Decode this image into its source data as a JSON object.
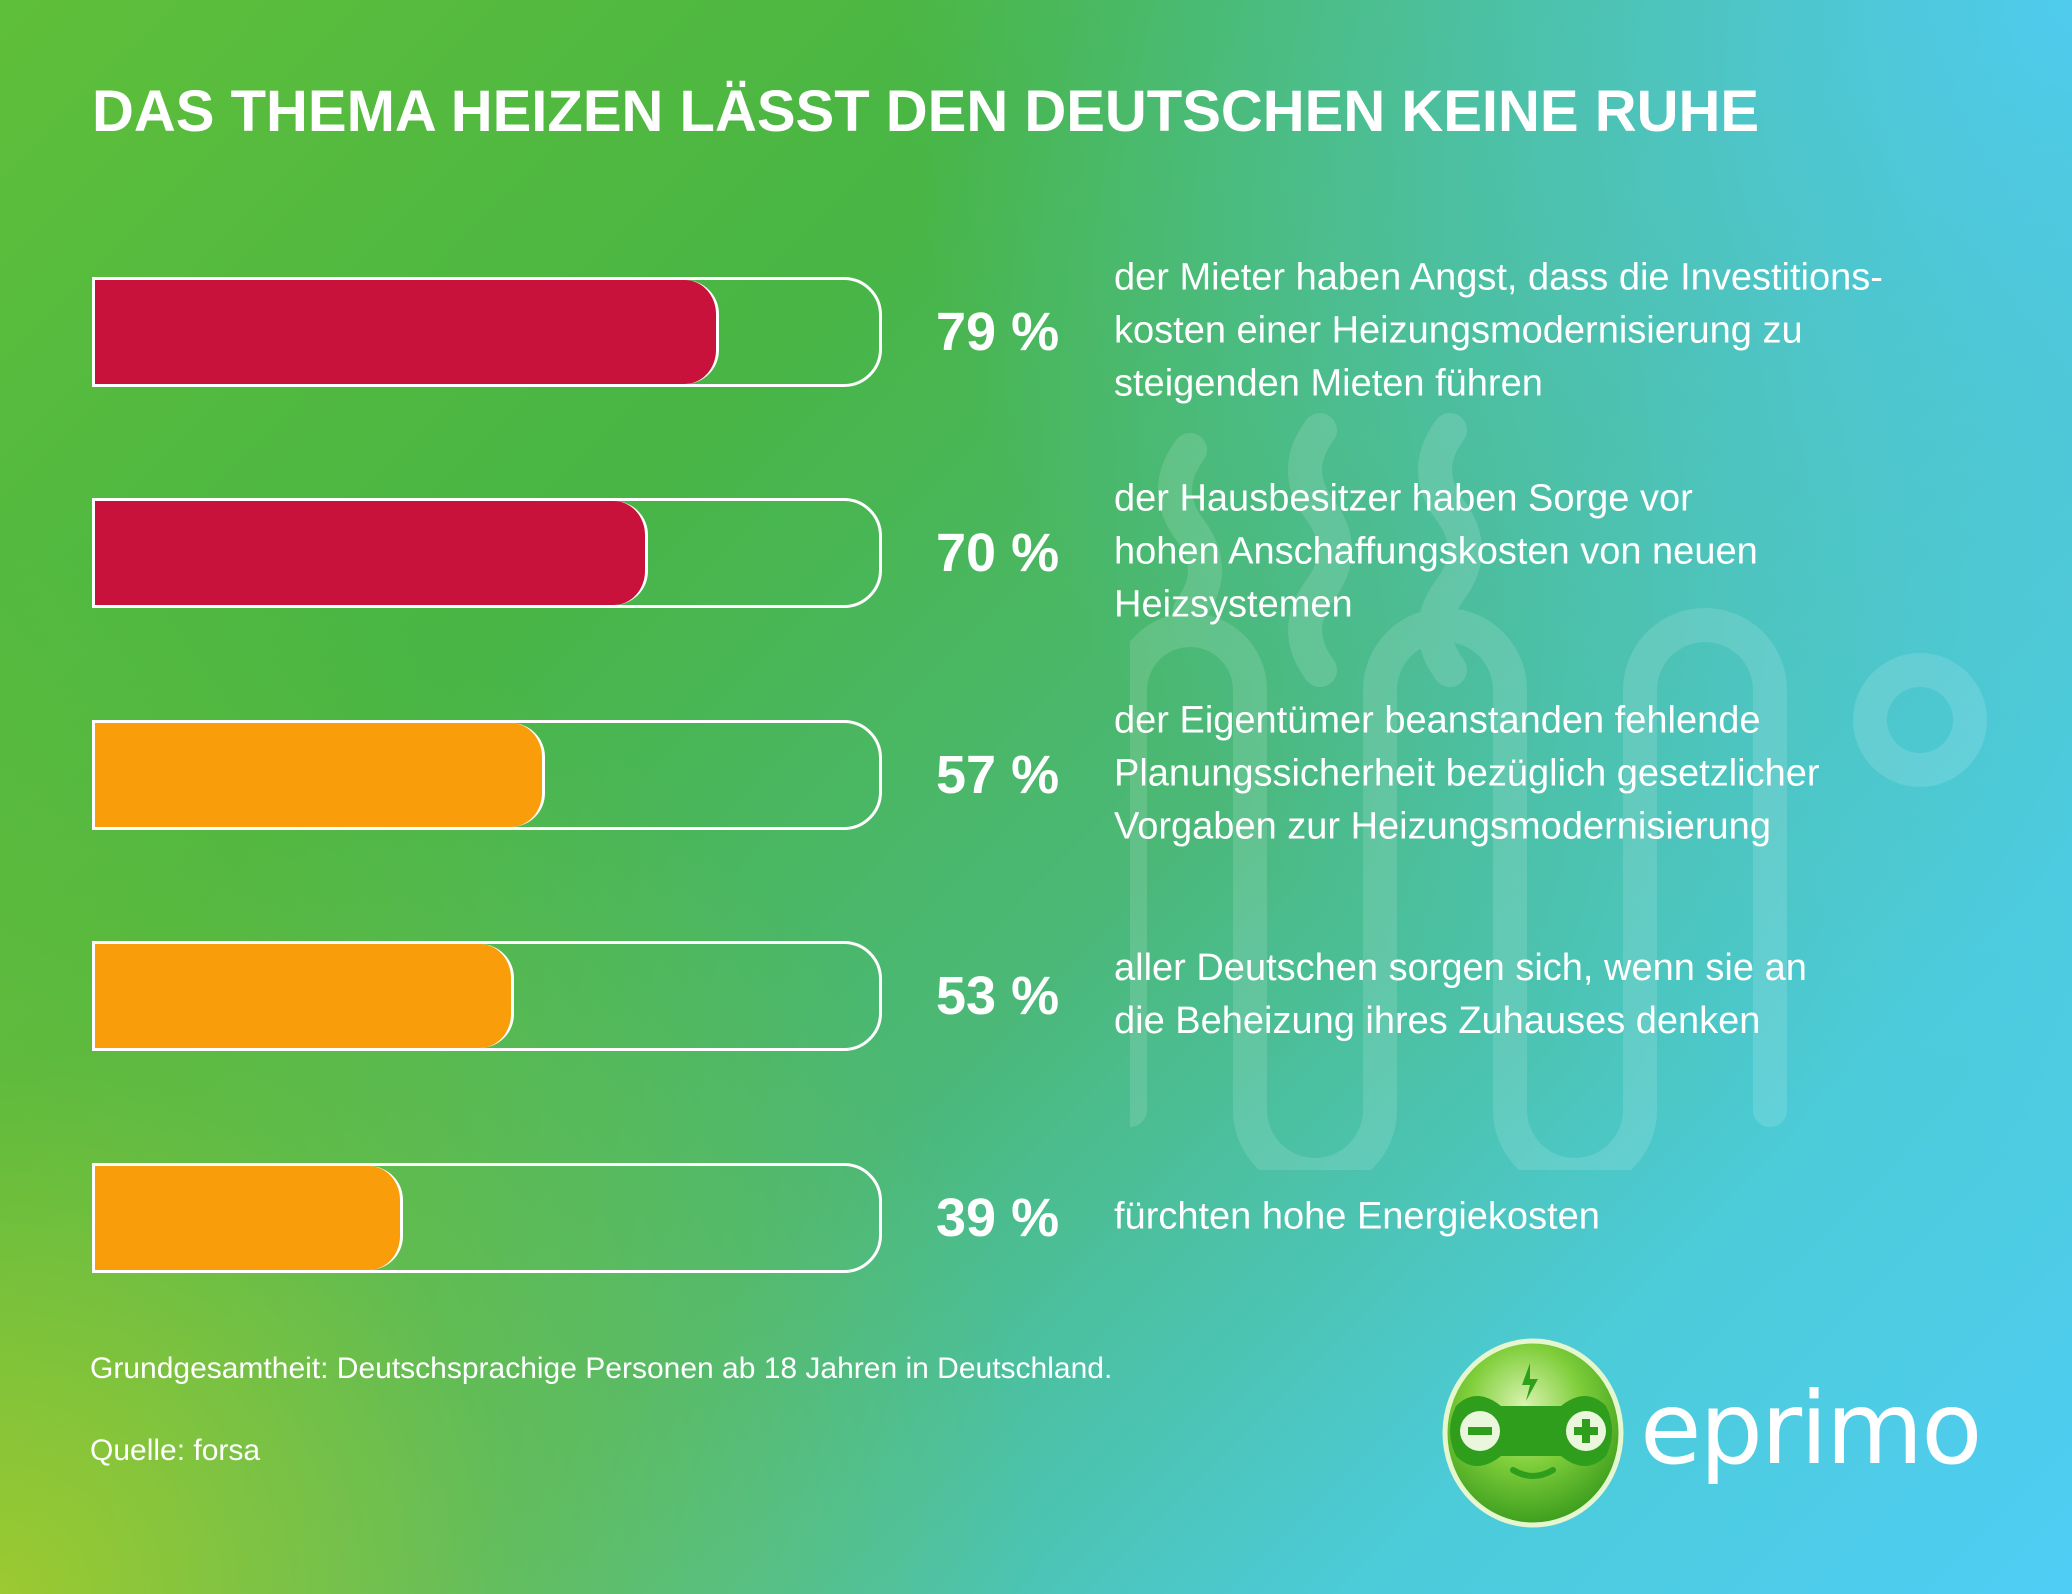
{
  "title": "DAS THEMA HEIZEN LÄSST DEN DEUTSCHEN KEINE RUHE",
  "colors": {
    "red": "#c8123c",
    "orange": "#f99d0a",
    "track_border": "#ffffff"
  },
  "chart_data": {
    "type": "bar",
    "orientation": "horizontal",
    "xlim": [
      0,
      100
    ],
    "categories": [
      "der Mieter haben Angst, dass die Investitions-\nkosten einer Heizungsmodernisierung zu\nsteigenden Mieten führen",
      "der Hausbesitzer haben Sorge vor\nhohen Anschaffungskosten von neuen\nHeizsystemen",
      "der Eigentümer beanstanden fehlende\nPlanungssicherheit bezüglich gesetzlicher\nVorgaben zur Heizungsmodernisierung",
      "aller Deutschen sorgen sich, wenn sie an\ndie Beheizung ihres Zuhauses denken",
      "fürchten hohe Energiekosten"
    ],
    "values": [
      79,
      70,
      57,
      53,
      39
    ],
    "labels": [
      "79 %",
      "70 %",
      "57 %",
      "53 %",
      "39 %"
    ],
    "bar_colors": [
      "#c8123c",
      "#c8123c",
      "#f99d0a",
      "#f99d0a",
      "#f99d0a"
    ]
  },
  "footnotes": {
    "base": "Grundgesamtheit: Deutschsprachige Personen ab 18 Jahren in Deutschland.",
    "source": "Quelle: forsa"
  },
  "logo": {
    "wordmark": "eprimo",
    "icon": "eprimo-mascot-icon"
  }
}
